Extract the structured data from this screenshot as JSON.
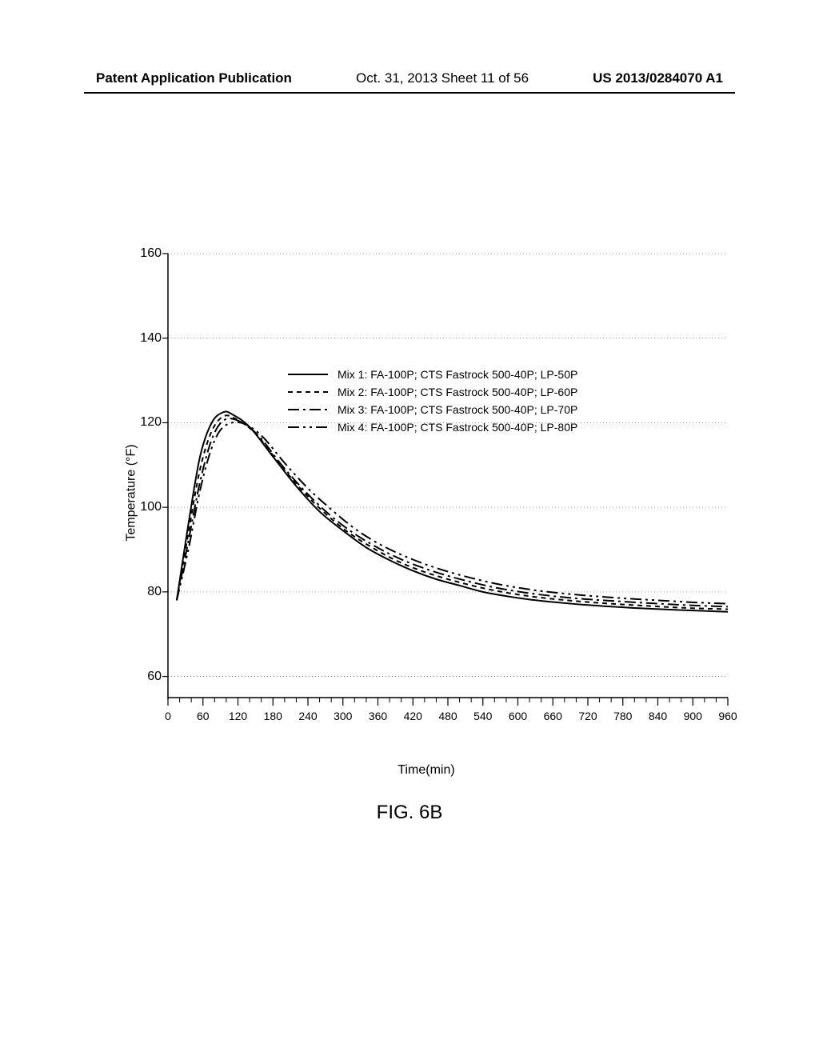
{
  "header": {
    "left": "Patent Application Publication",
    "mid": "Oct. 31, 2013  Sheet 11 of 56",
    "right": "US 2013/0284070 A1"
  },
  "chart": {
    "type": "line",
    "xlabel": "Time(min)",
    "ylabel": "Temperature (°F)",
    "xlim": [
      0,
      960
    ],
    "ylim": [
      55,
      160
    ],
    "xticks": [
      0,
      60,
      120,
      180,
      240,
      300,
      360,
      420,
      480,
      540,
      600,
      660,
      720,
      780,
      840,
      900,
      960
    ],
    "xticks_minor_step": 20,
    "yticks": [
      60,
      80,
      100,
      120,
      140,
      160
    ],
    "grid_y": [
      60,
      80,
      100,
      120,
      140,
      160
    ],
    "grid_color": "#808080",
    "axis_color": "#000000",
    "background_color": "#ffffff",
    "series": [
      {
        "label": "Mix 1: FA-100P; CTS Fastrock 500-40P; LP-50P",
        "dash": "solid",
        "color": "#000000",
        "width": 2,
        "points": [
          [
            15,
            78
          ],
          [
            35,
            96
          ],
          [
            55,
            112
          ],
          [
            75,
            120
          ],
          [
            95,
            122.5
          ],
          [
            110,
            122
          ],
          [
            140,
            119
          ],
          [
            180,
            112
          ],
          [
            220,
            105
          ],
          [
            260,
            99
          ],
          [
            300,
            94.5
          ],
          [
            340,
            90.5
          ],
          [
            380,
            87.5
          ],
          [
            420,
            85
          ],
          [
            460,
            83
          ],
          [
            500,
            81.5
          ],
          [
            540,
            80
          ],
          [
            580,
            79
          ],
          [
            620,
            78.2
          ],
          [
            660,
            77.6
          ],
          [
            700,
            77.1
          ],
          [
            740,
            76.7
          ],
          [
            800,
            76.2
          ],
          [
            880,
            75.7
          ],
          [
            960,
            75.3
          ]
        ]
      },
      {
        "label": "Mix 2: FA-100P; CTS Fastrock 500-40P; LP-60P",
        "dash": "dash",
        "color": "#000000",
        "width": 2,
        "points": [
          [
            15,
            78
          ],
          [
            35,
            94
          ],
          [
            55,
            109
          ],
          [
            75,
            118
          ],
          [
            95,
            121.5
          ],
          [
            115,
            121
          ],
          [
            150,
            117.5
          ],
          [
            190,
            110.5
          ],
          [
            230,
            104
          ],
          [
            270,
            98.5
          ],
          [
            310,
            94
          ],
          [
            350,
            90.5
          ],
          [
            390,
            87.5
          ],
          [
            430,
            85.2
          ],
          [
            470,
            83.4
          ],
          [
            510,
            81.9
          ],
          [
            550,
            80.6
          ],
          [
            590,
            79.6
          ],
          [
            630,
            78.8
          ],
          [
            670,
            78.2
          ],
          [
            710,
            77.7
          ],
          [
            760,
            77.2
          ],
          [
            820,
            76.7
          ],
          [
            890,
            76.2
          ],
          [
            960,
            75.9
          ]
        ]
      },
      {
        "label": "Mix 3: FA-100P; CTS Fastrock 500-40P; LP-70P",
        "dash": "dashdot",
        "color": "#000000",
        "width": 2,
        "points": [
          [
            15,
            78
          ],
          [
            35,
            92
          ],
          [
            55,
            106
          ],
          [
            75,
            116
          ],
          [
            95,
            120.5
          ],
          [
            120,
            120.5
          ],
          [
            155,
            117
          ],
          [
            195,
            110
          ],
          [
            235,
            103.8
          ],
          [
            275,
            98.5
          ],
          [
            315,
            94.2
          ],
          [
            355,
            90.8
          ],
          [
            395,
            88
          ],
          [
            435,
            85.8
          ],
          [
            475,
            84
          ],
          [
            515,
            82.5
          ],
          [
            555,
            81.2
          ],
          [
            595,
            80.2
          ],
          [
            635,
            79.4
          ],
          [
            675,
            78.8
          ],
          [
            715,
            78.3
          ],
          [
            770,
            77.8
          ],
          [
            830,
            77.3
          ],
          [
            900,
            76.8
          ],
          [
            960,
            76.5
          ]
        ]
      },
      {
        "label": "Mix 4: FA-100P; CTS Fastrock 500-40P; LP-80P",
        "dash": "dashdotdot",
        "color": "#000000",
        "width": 2,
        "points": [
          [
            15,
            78
          ],
          [
            35,
            90
          ],
          [
            55,
            104
          ],
          [
            75,
            114
          ],
          [
            95,
            119
          ],
          [
            125,
            120
          ],
          [
            160,
            117
          ],
          [
            200,
            110.5
          ],
          [
            240,
            104.5
          ],
          [
            280,
            99.5
          ],
          [
            320,
            95
          ],
          [
            360,
            91.5
          ],
          [
            400,
            88.8
          ],
          [
            440,
            86.6
          ],
          [
            480,
            84.8
          ],
          [
            520,
            83.3
          ],
          [
            560,
            82
          ],
          [
            600,
            81
          ],
          [
            640,
            80.2
          ],
          [
            680,
            79.6
          ],
          [
            720,
            79.1
          ],
          [
            780,
            78.5
          ],
          [
            840,
            78
          ],
          [
            905,
            77.5
          ],
          [
            960,
            77.2
          ]
        ]
      }
    ],
    "legend_dashes": {
      "solid": "",
      "dash": "6,5",
      "dashdot": "14,5,3,5",
      "dashdotdot": "14,5,3,5,3,5"
    }
  },
  "figure_label": "FIG. 6B"
}
